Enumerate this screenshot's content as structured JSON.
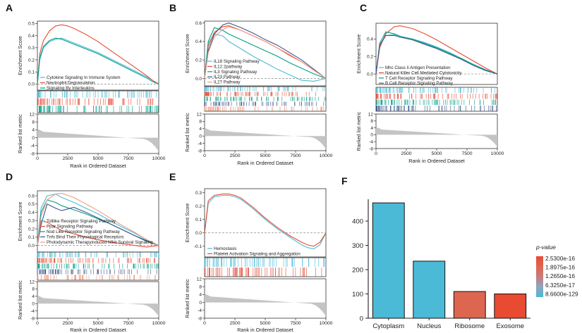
{
  "figure": {
    "panels": [
      "A",
      "B",
      "C",
      "D",
      "E",
      "F"
    ]
  },
  "gsea_axes": {
    "es_ylabel": "Enrichment Score",
    "metric_ylabel": "Ranked list metric",
    "xlabel": "Rank in Ordered Dataset",
    "x_ticks": [
      "0",
      "2500",
      "5000",
      "7500",
      "10000"
    ],
    "metric_ticks": [
      "12",
      "8",
      "4",
      "0",
      "-4",
      "-8"
    ]
  },
  "chart_data": [
    {
      "type": "line",
      "panel": "A",
      "xlabel": "Rank in Ordered Dataset",
      "ylabel": "Enrichment Score",
      "xlim": [
        0,
        10000
      ],
      "ylim": [
        -0.05,
        0.52
      ],
      "y_ticks": [
        "0.5",
        "0.4",
        "0.3",
        "0.2",
        "0.1",
        "0.0"
      ],
      "y_tick_values": [
        0.5,
        0.4,
        0.3,
        0.2,
        0.1,
        0.0
      ],
      "legend": [
        "Cytokine Signaling In Immune System",
        "Neutrophil Degranulation",
        "Signaling By Interleukins"
      ],
      "series": [
        {
          "name": "Cytokine Signaling In Immune System",
          "color": "#4dbbd5",
          "x": [
            0,
            200,
            500,
            1000,
            1500,
            2000,
            2500,
            3000,
            4000,
            5000,
            6000,
            7000,
            8000,
            9000,
            9500,
            10000
          ],
          "y": [
            0,
            0.2,
            0.3,
            0.35,
            0.37,
            0.38,
            0.36,
            0.34,
            0.3,
            0.26,
            0.21,
            0.16,
            0.11,
            0.06,
            0.03,
            0
          ]
        },
        {
          "name": "Neutrophil Degranulation",
          "color": "#e64b35",
          "x": [
            0,
            200,
            500,
            1000,
            1500,
            2000,
            2500,
            3000,
            4000,
            5000,
            6000,
            7000,
            8000,
            9000,
            9500,
            10000
          ],
          "y": [
            0,
            0.25,
            0.36,
            0.44,
            0.48,
            0.49,
            0.48,
            0.46,
            0.41,
            0.35,
            0.28,
            0.21,
            0.14,
            0.07,
            0.03,
            0
          ]
        },
        {
          "name": "Signaling By Interleukins",
          "color": "#00a087",
          "x": [
            0,
            200,
            500,
            1000,
            1500,
            2000,
            2500,
            3000,
            4000,
            5000,
            6000,
            7000,
            8000,
            9000,
            9500,
            10000
          ],
          "y": [
            0,
            0.22,
            0.31,
            0.36,
            0.38,
            0.37,
            0.35,
            0.33,
            0.29,
            0.25,
            0.2,
            0.15,
            0.1,
            0.05,
            0.02,
            0
          ]
        }
      ]
    },
    {
      "type": "line",
      "panel": "B",
      "xlabel": "Rank in Ordered Dataset",
      "ylabel": "Enrichment Score",
      "xlim": [
        0,
        10000
      ],
      "ylim": [
        -0.08,
        0.62
      ],
      "y_ticks": [
        "0.6",
        "0.4",
        "0.2",
        "0.0"
      ],
      "y_tick_values": [
        0.6,
        0.4,
        0.2,
        0.0
      ],
      "legend": [
        "IL18 Signaling Pathway",
        "IL12 2pathway",
        "IL3 Signaling Pathway",
        "IL23 Pathway",
        "IL27 Pathway"
      ],
      "series": [
        {
          "name": "IL18 Signaling Pathway",
          "color": "#4dbbd5",
          "x": [
            0,
            300,
            800,
            1500,
            2000,
            3000,
            4000,
            5000,
            6000,
            7000,
            8000,
            9000,
            10000
          ],
          "y": [
            0,
            0.38,
            0.48,
            0.46,
            0.4,
            0.32,
            0.24,
            0.17,
            0.1,
            0.04,
            -0.02,
            -0.03,
            0
          ]
        },
        {
          "name": "IL12 2pathway",
          "color": "#e64b35",
          "x": [
            0,
            300,
            800,
            1500,
            2000,
            3000,
            4000,
            5000,
            6000,
            7000,
            8000,
            9000,
            10000
          ],
          "y": [
            0,
            0.35,
            0.5,
            0.56,
            0.57,
            0.52,
            0.46,
            0.4,
            0.33,
            0.25,
            0.18,
            0.09,
            0
          ]
        },
        {
          "name": "IL3 Signaling Pathway",
          "color": "#00a087",
          "x": [
            0,
            300,
            800,
            1500,
            2000,
            3000,
            4000,
            5000,
            6000,
            7000,
            8000,
            9000,
            10000
          ],
          "y": [
            0,
            0.4,
            0.55,
            0.52,
            0.48,
            0.42,
            0.36,
            0.3,
            0.24,
            0.17,
            0.11,
            0.05,
            0
          ]
        },
        {
          "name": "IL23 Pathway",
          "color": "#3c5488",
          "x": [
            0,
            300,
            800,
            1500,
            2000,
            3000,
            4000,
            5000,
            6000,
            7000,
            8000,
            9000,
            10000
          ],
          "y": [
            0,
            0.3,
            0.48,
            0.58,
            0.6,
            0.55,
            0.49,
            0.42,
            0.36,
            0.28,
            0.2,
            0.1,
            0
          ]
        },
        {
          "name": "IL27 Pathway",
          "color": "#f39b7f",
          "x": [
            0,
            300,
            800,
            1500,
            2000,
            3000,
            4000,
            5000,
            6000,
            7000,
            8000,
            9000,
            10000
          ],
          "y": [
            0,
            0.28,
            0.45,
            0.53,
            0.56,
            0.52,
            0.46,
            0.4,
            0.33,
            0.26,
            0.18,
            0.09,
            0
          ]
        }
      ]
    },
    {
      "type": "line",
      "panel": "C",
      "xlabel": "Rank in Ordered Dataset",
      "ylabel": "Enrichment Score",
      "xlim": [
        0,
        10000
      ],
      "ylim": [
        -0.12,
        0.58
      ],
      "y_ticks": [
        "0.4",
        "0.2",
        "0.0"
      ],
      "y_tick_values": [
        0.4,
        0.2,
        0.0
      ],
      "legend": [
        "Mhc Class Ii Antigen Presentation",
        "Natural Killer Cell Mediated Cytotoxicity",
        "T Cell Receptor Signaling Pathway",
        "B Cell Receptor Signaling Pathway"
      ],
      "series": [
        {
          "name": "Mhc Class Ii Antigen Presentation",
          "color": "#4dbbd5",
          "x": [
            0,
            300,
            800,
            1500,
            2000,
            3000,
            4000,
            5000,
            6000,
            7000,
            8000,
            9000,
            10000
          ],
          "y": [
            0,
            0.32,
            0.44,
            0.45,
            0.43,
            0.4,
            0.36,
            0.31,
            0.25,
            0.18,
            0.11,
            0.05,
            0
          ]
        },
        {
          "name": "Natural Killer Cell Mediated Cytotoxicity",
          "color": "#e64b35",
          "x": [
            0,
            300,
            800,
            1500,
            2000,
            3000,
            4000,
            5000,
            6000,
            7000,
            8000,
            9000,
            10000
          ],
          "y": [
            0,
            0.3,
            0.46,
            0.54,
            0.55,
            0.52,
            0.46,
            0.39,
            0.31,
            0.23,
            0.15,
            0.07,
            0
          ]
        },
        {
          "name": "T Cell Receptor Signaling Pathway",
          "color": "#00a087",
          "x": [
            0,
            300,
            800,
            1500,
            2000,
            3000,
            4000,
            5000,
            6000,
            7000,
            8000,
            9000,
            10000
          ],
          "y": [
            0,
            0.35,
            0.48,
            0.46,
            0.43,
            0.4,
            0.35,
            0.3,
            0.24,
            0.18,
            0.11,
            0.05,
            0
          ]
        },
        {
          "name": "B Cell Receptor Signaling Pathway",
          "color": "#3c5488",
          "x": [
            0,
            300,
            800,
            1500,
            2000,
            3000,
            4000,
            5000,
            6000,
            7000,
            8000,
            9000,
            10000
          ],
          "y": [
            0,
            0.33,
            0.44,
            0.44,
            0.42,
            0.39,
            0.34,
            0.29,
            0.23,
            0.17,
            0.1,
            0.04,
            0
          ]
        }
      ]
    },
    {
      "type": "line",
      "panel": "D",
      "xlabel": "Rank in Ordered Dataset",
      "ylabel": "Enrichment Score",
      "xlim": [
        0,
        10000
      ],
      "ylim": [
        -0.08,
        0.66
      ],
      "y_ticks": [
        "0.6",
        "0.5",
        "0.4",
        "0.3",
        "0.2",
        "0.1",
        "0.0"
      ],
      "y_tick_values": [
        0.6,
        0.5,
        0.4,
        0.3,
        0.2,
        0.1,
        0.0
      ],
      "legend": [
        "Tolllike Receptor Signaling Pathway",
        "Ppar Signaling Pathway",
        "Nod Like Receptor Signaling Pathway",
        "Tnfs Bind Their Physiological Receptors",
        "Photodynamic Therapyinduced Nfkb Survival Signaling"
      ],
      "series": [
        {
          "name": "Tolllike Receptor Signaling Pathway",
          "color": "#4dbbd5",
          "x": [
            0,
            300,
            800,
            1500,
            2000,
            3000,
            4000,
            5000,
            6000,
            7000,
            8000,
            9000,
            10000
          ],
          "y": [
            0,
            0.45,
            0.6,
            0.62,
            0.58,
            0.52,
            0.45,
            0.38,
            0.3,
            0.22,
            0.15,
            0.07,
            0
          ]
        },
        {
          "name": "Ppar Signaling Pathway",
          "color": "#e64b35",
          "x": [
            0,
            300,
            800,
            1500,
            2000,
            3000,
            4000,
            5000,
            6000,
            7000,
            8000,
            9000,
            10000
          ],
          "y": [
            0,
            0.3,
            0.28,
            0.22,
            0.18,
            0.14,
            0.1,
            0.07,
            0.04,
            0.02,
            0.0,
            -0.02,
            0
          ]
        },
        {
          "name": "Nod Like Receptor Signaling Pathway",
          "color": "#00a087",
          "x": [
            0,
            300,
            800,
            1500,
            2000,
            3000,
            4000,
            5000,
            6000,
            7000,
            8000,
            9000,
            10000
          ],
          "y": [
            0,
            0.4,
            0.55,
            0.52,
            0.48,
            0.43,
            0.38,
            0.32,
            0.26,
            0.19,
            0.12,
            0.06,
            0
          ]
        },
        {
          "name": "Tnfs Bind Their Physiological Receptors",
          "color": "#3c5488",
          "x": [
            0,
            300,
            800,
            1500,
            2000,
            3000,
            4000,
            5000,
            6000,
            7000,
            8000,
            9000,
            10000
          ],
          "y": [
            0,
            0.25,
            0.5,
            0.45,
            0.42,
            0.46,
            0.4,
            0.33,
            0.26,
            0.19,
            0.12,
            0.05,
            0
          ]
        },
        {
          "name": "Photodynamic Therapyinduced Nfkb Survival Signaling",
          "color": "#f39b7f",
          "x": [
            0,
            300,
            800,
            1500,
            2000,
            3000,
            4000,
            5000,
            6000,
            7000,
            8000,
            9000,
            10000
          ],
          "y": [
            0,
            0.35,
            0.55,
            0.62,
            0.63,
            0.58,
            0.5,
            0.42,
            0.33,
            0.24,
            0.16,
            0.07,
            0
          ]
        }
      ]
    },
    {
      "type": "line",
      "panel": "E",
      "xlabel": "Rank in Ordered Dataset",
      "ylabel": "Enrichment Score",
      "xlim": [
        0,
        10000
      ],
      "ylim": [
        -0.18,
        0.33
      ],
      "y_ticks": [
        "0.3",
        "0.2",
        "0.1",
        "0.0",
        "-0.1"
      ],
      "y_tick_values": [
        0.3,
        0.2,
        0.1,
        0.0,
        -0.1
      ],
      "legend": [
        "Hemostasis",
        "Platelet Activation Signaling and Aggregation"
      ],
      "series": [
        {
          "name": "Hemostasis",
          "color": "#4dbbd5",
          "x": [
            0,
            300,
            800,
            1500,
            2000,
            2500,
            3000,
            4000,
            5000,
            6000,
            7000,
            8000,
            8500,
            9000,
            9500,
            10000
          ],
          "y": [
            0,
            0.22,
            0.27,
            0.28,
            0.28,
            0.27,
            0.25,
            0.18,
            0.1,
            0.03,
            -0.03,
            -0.09,
            -0.11,
            -0.12,
            -0.09,
            0
          ]
        },
        {
          "name": "Platelet Activation Signaling and Aggregation",
          "color": "#e64b35",
          "x": [
            0,
            300,
            800,
            1500,
            2000,
            2500,
            3000,
            4000,
            5000,
            6000,
            7000,
            8000,
            8500,
            9000,
            9500,
            10000
          ],
          "y": [
            0,
            0.24,
            0.28,
            0.29,
            0.29,
            0.28,
            0.26,
            0.19,
            0.11,
            0.04,
            -0.02,
            -0.07,
            -0.09,
            -0.1,
            -0.07,
            0
          ]
        }
      ]
    },
    {
      "type": "bar",
      "panel": "F",
      "categories": [
        "Cytoplasm",
        "Nucleus",
        "Ribosome",
        "Exosome"
      ],
      "values": [
        475,
        235,
        110,
        100
      ],
      "colors": [
        "#4bbad6",
        "#4bbad6",
        "#dd6650",
        "#e84a32"
      ],
      "ylim": [
        0,
        490
      ],
      "y_ticks": [
        0,
        100,
        200,
        300,
        400
      ],
      "legend_title": "p-value",
      "legend_labels": [
        "2.5300e-16",
        "1.8975e-16",
        "1.2650e-16",
        "6.3250e-17",
        "8.6600e-129"
      ],
      "legend_colors": [
        "#e84a32",
        "#dd6650",
        "#c97a7e",
        "#8fa6bd",
        "#4bbad6"
      ]
    }
  ]
}
